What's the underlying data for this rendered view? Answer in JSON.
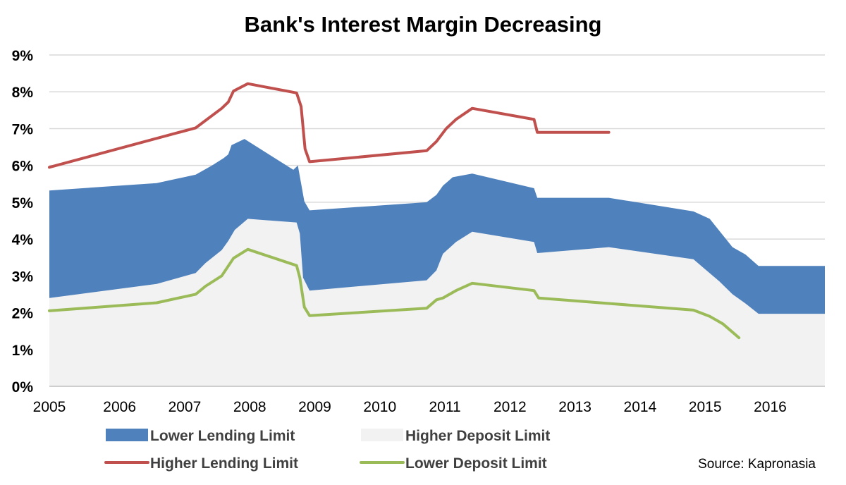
{
  "chart_data": {
    "type": "area",
    "title": "Bank's Interest Margin Decreasing",
    "xlabel": "",
    "ylabel": "",
    "xlim": [
      2005,
      2016.92
    ],
    "ylim": [
      0,
      9
    ],
    "grid": true,
    "y_ticks": [
      {
        "value": 0,
        "label": "0%"
      },
      {
        "value": 1,
        "label": "1%"
      },
      {
        "value": 2,
        "label": "2%"
      },
      {
        "value": 3,
        "label": "3%"
      },
      {
        "value": 4,
        "label": "4%"
      },
      {
        "value": 5,
        "label": "5%"
      },
      {
        "value": 6,
        "label": "6%"
      },
      {
        "value": 7,
        "label": "7%"
      },
      {
        "value": 8,
        "label": "8%"
      },
      {
        "value": 9,
        "label": "9%"
      }
    ],
    "x_ticks": [
      {
        "value": 2005,
        "label": "2005"
      },
      {
        "value": 2006.08,
        "label": "2006"
      },
      {
        "value": 2007.08,
        "label": "2007"
      },
      {
        "value": 2008.08,
        "label": "2008"
      },
      {
        "value": 2009.08,
        "label": "2009"
      },
      {
        "value": 2010.08,
        "label": "2010"
      },
      {
        "value": 2011.08,
        "label": "2011"
      },
      {
        "value": 2012.08,
        "label": "2012"
      },
      {
        "value": 2013.08,
        "label": "2013"
      },
      {
        "value": 2014.08,
        "label": "2014"
      },
      {
        "value": 2015.08,
        "label": "2015"
      },
      {
        "value": 2016.08,
        "label": "2016"
      }
    ],
    "series": [
      {
        "name": "Lower Lending Limit",
        "kind": "area",
        "color": "#4F81BD",
        "points": [
          [
            2005,
            5.32
          ],
          [
            2006.65,
            5.52
          ],
          [
            2007.25,
            5.75
          ],
          [
            2007.5,
            6.0
          ],
          [
            2007.68,
            6.2
          ],
          [
            2007.75,
            6.3
          ],
          [
            2007.8,
            6.55
          ],
          [
            2008.0,
            6.72
          ],
          [
            2008.75,
            5.88
          ],
          [
            2008.82,
            6.0
          ],
          [
            2008.92,
            5.02
          ],
          [
            2009.0,
            4.78
          ],
          [
            2010.8,
            5.0
          ],
          [
            2010.95,
            5.2
          ],
          [
            2011.05,
            5.45
          ],
          [
            2011.2,
            5.68
          ],
          [
            2011.5,
            5.78
          ],
          [
            2012.45,
            5.38
          ],
          [
            2012.5,
            5.12
          ],
          [
            2013.6,
            5.12
          ],
          [
            2014.9,
            4.75
          ],
          [
            2015.15,
            4.55
          ],
          [
            2015.5,
            3.78
          ],
          [
            2015.7,
            3.58
          ],
          [
            2015.9,
            3.27
          ],
          [
            2016.92,
            3.27
          ]
        ]
      },
      {
        "name": "Higher Deposit Limit",
        "kind": "area",
        "color": "#F2F2F2",
        "points": [
          [
            2005,
            2.4
          ],
          [
            2006.65,
            2.78
          ],
          [
            2007.25,
            3.08
          ],
          [
            2007.4,
            3.35
          ],
          [
            2007.65,
            3.7
          ],
          [
            2007.75,
            3.95
          ],
          [
            2007.85,
            4.25
          ],
          [
            2008.05,
            4.55
          ],
          [
            2008.8,
            4.45
          ],
          [
            2008.85,
            4.15
          ],
          [
            2008.9,
            2.95
          ],
          [
            2009.0,
            2.6
          ],
          [
            2010.8,
            2.88
          ],
          [
            2010.95,
            3.15
          ],
          [
            2011.05,
            3.6
          ],
          [
            2011.25,
            3.92
          ],
          [
            2011.5,
            4.2
          ],
          [
            2012.45,
            3.92
          ],
          [
            2012.5,
            3.62
          ],
          [
            2013.6,
            3.78
          ],
          [
            2014.9,
            3.45
          ],
          [
            2015.1,
            3.15
          ],
          [
            2015.3,
            2.85
          ],
          [
            2015.5,
            2.5
          ],
          [
            2015.7,
            2.25
          ],
          [
            2015.9,
            1.97
          ],
          [
            2016.92,
            1.97
          ]
        ]
      },
      {
        "name": "Higher Lending Limit",
        "kind": "line",
        "color": "#C0504D",
        "points": [
          [
            2005,
            5.95
          ],
          [
            2007.25,
            7.02
          ],
          [
            2007.65,
            7.55
          ],
          [
            2007.75,
            7.72
          ],
          [
            2007.83,
            8.02
          ],
          [
            2008.05,
            8.22
          ],
          [
            2008.8,
            7.97
          ],
          [
            2008.87,
            7.6
          ],
          [
            2008.93,
            6.45
          ],
          [
            2009.0,
            6.1
          ],
          [
            2010.8,
            6.4
          ],
          [
            2010.95,
            6.65
          ],
          [
            2011.1,
            7.0
          ],
          [
            2011.25,
            7.25
          ],
          [
            2011.5,
            7.55
          ],
          [
            2012.45,
            7.25
          ],
          [
            2012.5,
            6.9
          ],
          [
            2013.6,
            6.9
          ]
        ]
      },
      {
        "name": "Lower Deposit Limit",
        "kind": "line",
        "color": "#9BBB59",
        "points": [
          [
            2005,
            2.05
          ],
          [
            2006.65,
            2.27
          ],
          [
            2007.25,
            2.5
          ],
          [
            2007.4,
            2.72
          ],
          [
            2007.65,
            3.0
          ],
          [
            2007.83,
            3.48
          ],
          [
            2008.05,
            3.72
          ],
          [
            2008.8,
            3.28
          ],
          [
            2008.85,
            2.95
          ],
          [
            2008.92,
            2.15
          ],
          [
            2009.0,
            1.92
          ],
          [
            2010.8,
            2.12
          ],
          [
            2010.95,
            2.35
          ],
          [
            2011.05,
            2.4
          ],
          [
            2011.25,
            2.6
          ],
          [
            2011.5,
            2.8
          ],
          [
            2012.45,
            2.6
          ],
          [
            2012.52,
            2.4
          ],
          [
            2013.6,
            2.25
          ],
          [
            2014.9,
            2.07
          ],
          [
            2015.15,
            1.9
          ],
          [
            2015.35,
            1.7
          ],
          [
            2015.6,
            1.32
          ]
        ]
      }
    ],
    "legend": [
      {
        "name": "Lower Lending Limit",
        "kind": "area",
        "color": "#4F81BD",
        "position": "row1-left"
      },
      {
        "name": "Higher Deposit Limit",
        "kind": "area",
        "color": "#F2F2F2",
        "position": "row1-right"
      },
      {
        "name": "Higher Lending Limit",
        "kind": "line",
        "color": "#C0504D",
        "position": "row2-left"
      },
      {
        "name": "Lower Deposit Limit",
        "kind": "line",
        "color": "#9BBB59",
        "position": "row2-right"
      }
    ],
    "source": "Source: Kapronasia"
  }
}
